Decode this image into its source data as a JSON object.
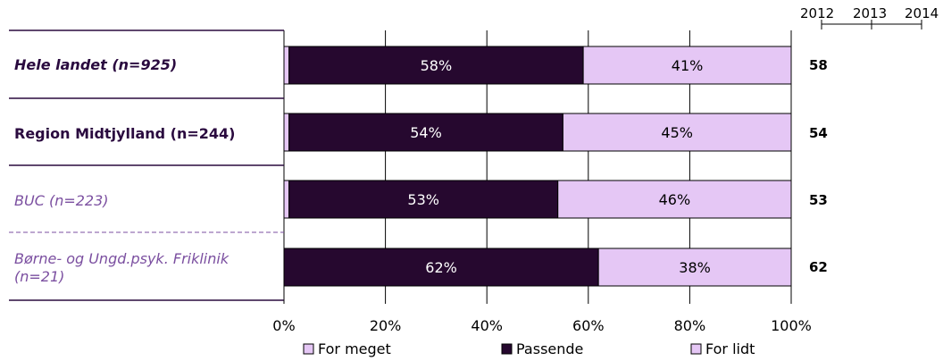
{
  "years": {
    "y2012": "2012",
    "y2013": "2013",
    "y2014": "2014"
  },
  "rows": [
    {
      "label": "Hele landet (n=925)",
      "score": "58"
    },
    {
      "label": "Region Midtjylland (n=244)",
      "score": "54"
    },
    {
      "label": "BUC (n=223)",
      "score": "53"
    },
    {
      "label": "Børne- og Ungd.psyk. Friklinik (n=21)",
      "score": "62"
    }
  ],
  "chart_data": {
    "type": "bar",
    "orientation": "horizontal",
    "stacked": true,
    "categories": [
      "Hele landet (n=925)",
      "Region Midtjylland (n=244)",
      "BUC (n=223)",
      "Børne- og Ungd.psyk. Friklinik (n=21)"
    ],
    "series": [
      {
        "name": "For meget",
        "values": [
          1,
          1,
          1,
          0
        ],
        "color": "#e5c7f5"
      },
      {
        "name": "Passende",
        "values": [
          58,
          54,
          53,
          62
        ],
        "color": "#26082f"
      },
      {
        "name": "For lidt",
        "values": [
          41,
          45,
          46,
          38
        ],
        "color": "#e5c7f5"
      }
    ],
    "data_labels": [
      [
        "",
        "58%",
        "41%"
      ],
      [
        "",
        "54%",
        "45%"
      ],
      [
        "",
        "53%",
        "46%"
      ],
      [
        "",
        "62%",
        "38%"
      ]
    ],
    "xlim": [
      0,
      100
    ],
    "ticks": [
      "0%",
      "20%",
      "40%",
      "60%",
      "80%",
      "100%"
    ],
    "grid": true,
    "legend_position": "bottom"
  }
}
